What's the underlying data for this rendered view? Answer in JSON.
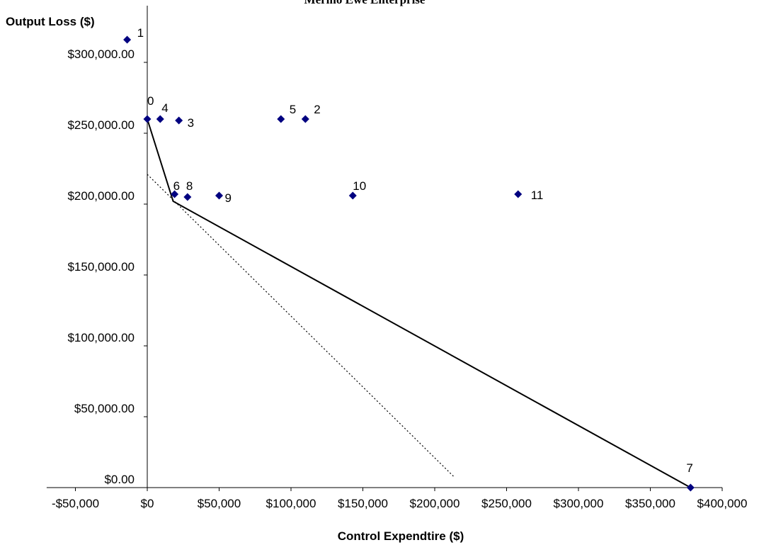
{
  "chart_data": {
    "type": "scatter",
    "title": "Merino Ewe Enterprise",
    "xlabel": "Control Expendtire ($)",
    "ylabel": "Output Loss ($)",
    "xlim": [
      -70000,
      400000
    ],
    "ylim": [
      0,
      340000
    ],
    "x_ticks": [
      -50000,
      0,
      50000,
      100000,
      150000,
      200000,
      250000,
      300000,
      350000,
      400000
    ],
    "x_tick_labels": [
      "-$50,000",
      "$0",
      "$50,000",
      "$100,000",
      "$150,000",
      "$200,000",
      "$250,000",
      "$300,000",
      "$350,000",
      "$400,000"
    ],
    "y_ticks": [
      0,
      50000,
      100000,
      150000,
      200000,
      250000,
      300000
    ],
    "y_tick_labels": [
      "$0.00",
      "$50,000.00",
      "$100,000.00",
      "$150,000.00",
      "$200,000.00",
      "$250,000.00",
      "$300,000.00"
    ],
    "grid": false,
    "marker_color": "#000080",
    "points": [
      {
        "label": "0",
        "x": 0,
        "y": 260000
      },
      {
        "label": "1",
        "x": -14000,
        "y": 316000
      },
      {
        "label": "2",
        "x": 110000,
        "y": 260000
      },
      {
        "label": "3",
        "x": 22000,
        "y": 259000
      },
      {
        "label": "4",
        "x": 9000,
        "y": 260000
      },
      {
        "label": "5",
        "x": 93000,
        "y": 260000
      },
      {
        "label": "6",
        "x": 19000,
        "y": 207000
      },
      {
        "label": "7",
        "x": 378000,
        "y": 0
      },
      {
        "label": "8",
        "x": 28000,
        "y": 205000
      },
      {
        "label": "9",
        "x": 50000,
        "y": 206000
      },
      {
        "label": "10",
        "x": 143000,
        "y": 206000
      },
      {
        "label": "11",
        "x": 258000,
        "y": 207000
      }
    ],
    "frontier_line": [
      [
        0,
        260000
      ],
      [
        18000,
        202000
      ],
      [
        378000,
        0
      ]
    ],
    "dotted_line": [
      [
        0,
        221000
      ],
      [
        214000,
        7000
      ]
    ]
  }
}
